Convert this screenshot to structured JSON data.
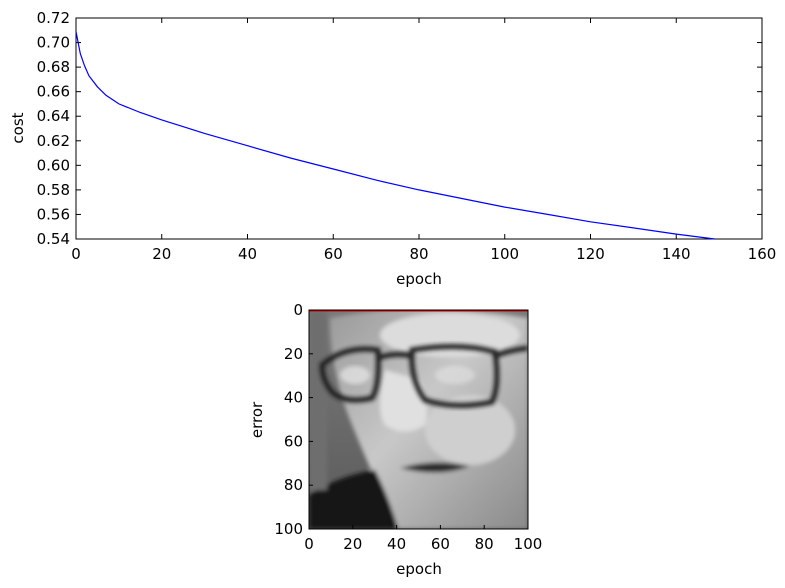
{
  "chart_data": [
    {
      "type": "line",
      "title": "",
      "xlabel": "epoch",
      "ylabel": "cost",
      "xlim": [
        0,
        160
      ],
      "ylim": [
        0.54,
        0.72
      ],
      "x_ticks": [
        "0",
        "20",
        "40",
        "60",
        "80",
        "100",
        "120",
        "140",
        "160"
      ],
      "y_ticks": [
        "0.54",
        "0.56",
        "0.58",
        "0.60",
        "0.62",
        "0.64",
        "0.66",
        "0.68",
        "0.70",
        "0.72"
      ],
      "grid": false,
      "colors": {
        "line": "#0000ff"
      },
      "series": [
        {
          "x": [
            0,
            1,
            2,
            3,
            5,
            7,
            10,
            15,
            20,
            30,
            40,
            50,
            60,
            70,
            80,
            90,
            100,
            110,
            120,
            130,
            140,
            149
          ],
          "y": [
            0.709,
            0.691,
            0.681,
            0.673,
            0.664,
            0.657,
            0.65,
            0.643,
            0.637,
            0.626,
            0.616,
            0.606,
            0.597,
            0.588,
            0.58,
            0.573,
            0.566,
            0.56,
            0.554,
            0.549,
            0.544,
            0.54
          ]
        }
      ]
    },
    {
      "type": "image",
      "title": "",
      "xlabel": "epoch",
      "ylabel": "error",
      "xlim": [
        0,
        100
      ],
      "ylim": [
        100,
        0
      ],
      "x_ticks": [
        "0",
        "20",
        "40",
        "60",
        "80",
        "100"
      ],
      "y_ticks": [
        "0",
        "20",
        "40",
        "60",
        "80",
        "100"
      ],
      "grid": false,
      "colors": {
        "top_line": "#cc0000"
      }
    }
  ]
}
